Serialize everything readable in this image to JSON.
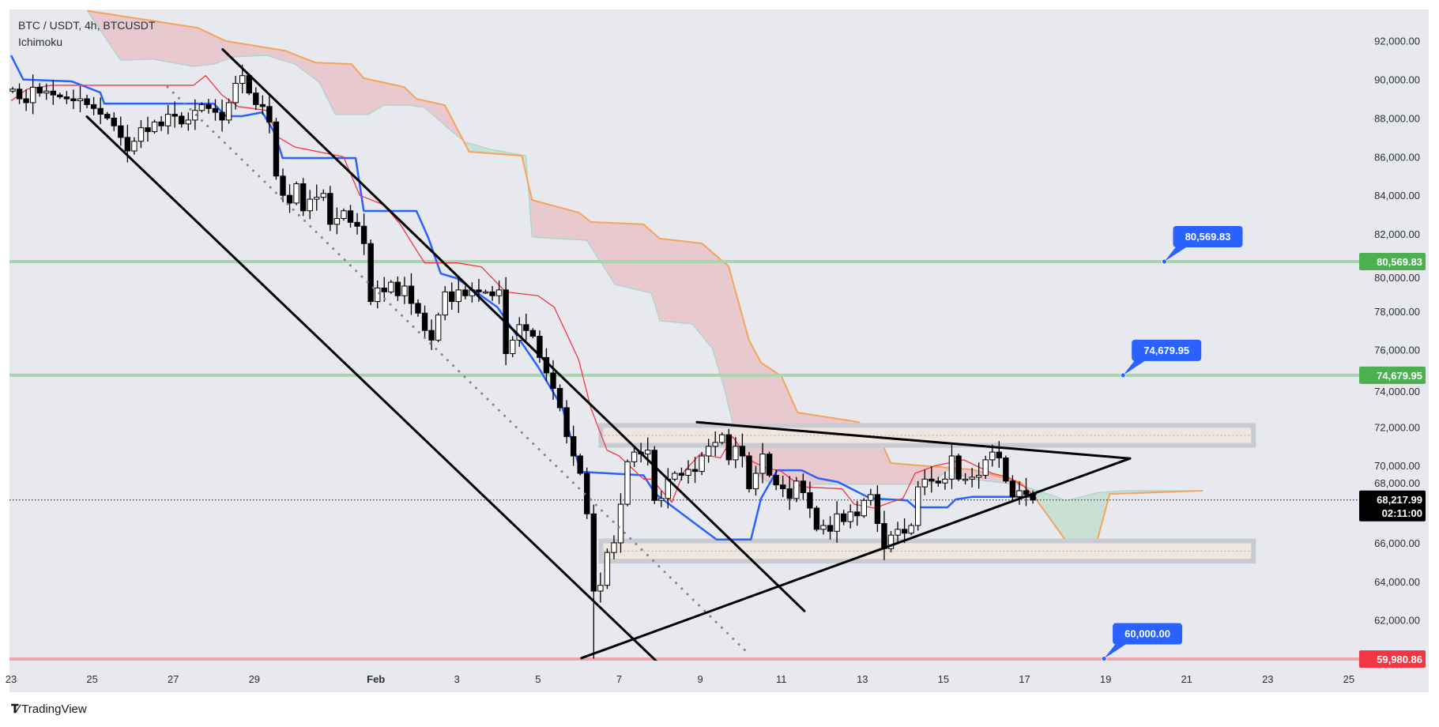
{
  "header": {
    "symbol": "BTC / USDT, 4h, BTCUSDT",
    "indicator": "Ichimoku"
  },
  "branding": {
    "name": "TradingView",
    "logo_glyph": "17"
  },
  "colors": {
    "background": "#e8e9ee",
    "tenkan": "#f23645",
    "kijun": "#2962ff",
    "span_b": "#f7a35c",
    "span_a": "#a5d6c8",
    "cloud_bear": "#e8c9cf",
    "cloud_bull": "#c9e0d4",
    "level_green": "#a8d5ac",
    "level_red": "#f0a4ad",
    "badge_green": "#4caf50",
    "badge_red": "#f23645",
    "callout": "#2962ff"
  },
  "chart_data": {
    "type": "candlestick",
    "title": "BTC / USDT, 4h, BTCUSDT",
    "interval_hours": 4,
    "x_unit": "days since Jan 23",
    "xlim": [
      0,
      33.25
    ],
    "ylim": [
      59899,
      93627
    ],
    "y_ticks": [
      92000,
      90000,
      88000,
      86000,
      84000,
      82000,
      80000,
      78000,
      76000,
      74000,
      72000,
      70000,
      68000,
      66000,
      64000,
      62000
    ],
    "y_tick_labels": [
      "92,000.00",
      "90,000.00",
      "88,000.00",
      "86,000.00",
      "84,000.00",
      "82,000.00",
      "80,000.00",
      "78,000.00",
      "76,000.00",
      "74,000.00",
      "72,000.00",
      "70,000.00",
      "68,000.00",
      "66,000.00",
      "64,000.00",
      "62,000.00"
    ],
    "x_ticks": [
      0,
      2,
      4,
      6,
      9,
      11,
      13,
      15,
      17,
      19,
      21,
      23,
      25,
      27,
      29,
      31,
      33
    ],
    "x_tick_labels": [
      "23",
      "25",
      "27",
      "29",
      "Feb",
      "3",
      "5",
      "7",
      "9",
      "11",
      "13",
      "15",
      "17",
      "19",
      "21",
      "23",
      "25"
    ],
    "closes": [
      89500,
      89000,
      88800,
      89600,
      89300,
      89400,
      89200,
      89100,
      89000,
      88900,
      89000,
      88700,
      88500,
      88200,
      88000,
      87600,
      87000,
      86300,
      86800,
      87500,
      87300,
      87800,
      87600,
      88200,
      88100,
      87700,
      87900,
      88400,
      88700,
      88500,
      88300,
      87900,
      88800,
      89800,
      90200,
      89300,
      88700,
      88600,
      87800,
      85000,
      84000,
      83600,
      84600,
      83200,
      83800,
      83900,
      84100,
      82500,
      82800,
      83200,
      82600,
      82400,
      81500,
      78500,
      79200,
      79000,
      79500,
      78800,
      79300,
      78400,
      77900,
      77000,
      76500,
      77800,
      79000,
      78500,
      79100,
      78800,
      79100,
      79000,
      79000,
      78800,
      79100,
      75800,
      76500,
      77300,
      77000,
      76700,
      75600,
      74800,
      74000,
      73000,
      71500,
      70500,
      69600,
      67500,
      63500,
      63800,
      65500,
      66000,
      68000,
      70200,
      70700,
      70600,
      70800,
      68200,
      68300,
      69300,
      69600,
      69500,
      69800,
      69700,
      70500,
      71000,
      71200,
      71600,
      70300,
      71000,
      70500,
      68800,
      69600,
      70600,
      69500,
      69000,
      68800,
      68300,
      69200,
      68600,
      67800,
      66700,
      66900,
      66600,
      67500,
      67100,
      67600,
      67400,
      68200,
      68500,
      67000,
      65700,
      66400,
      66700,
      66500,
      66900,
      68900,
      69300,
      69200,
      69100,
      69300,
      70500,
      69300,
      69300,
      69400,
      69500,
      70300,
      70700,
      70400,
      69200,
      68400,
      68700,
      68500,
      68217.99
    ],
    "first_open": 89400,
    "low_of_range": 60000,
    "tenkan": [
      [
        0,
        88900
      ],
      [
        0.4,
        89500
      ],
      [
        1,
        89700
      ],
      [
        4.5,
        89700
      ],
      [
        4.8,
        90200
      ],
      [
        5.2,
        89200
      ],
      [
        5.6,
        88600
      ],
      [
        6.3,
        88400
      ],
      [
        6.6,
        87000
      ],
      [
        7,
        86500
      ],
      [
        8.2,
        86000
      ],
      [
        8.6,
        84000
      ],
      [
        9.2,
        83500
      ],
      [
        9.6,
        82500
      ],
      [
        10.2,
        80500
      ],
      [
        11,
        80500
      ],
      [
        11.6,
        80300
      ],
      [
        12.2,
        79000
      ],
      [
        13,
        78800
      ],
      [
        13.4,
        78200
      ],
      [
        14,
        75500
      ],
      [
        14.3,
        73000
      ],
      [
        14.7,
        70800
      ],
      [
        15,
        70500
      ],
      [
        15.6,
        69300
      ],
      [
        15.8,
        69300
      ],
      [
        16.3,
        68100
      ],
      [
        16.6,
        69700
      ],
      [
        17,
        70600
      ],
      [
        17.5,
        70400
      ],
      [
        17.8,
        71500
      ],
      [
        18.2,
        70300
      ],
      [
        18.6,
        69900
      ],
      [
        19,
        69700
      ],
      [
        19.5,
        68900
      ],
      [
        20.5,
        68800
      ],
      [
        20.8,
        68000
      ],
      [
        21.3,
        67800
      ],
      [
        21.7,
        68100
      ],
      [
        22,
        68300
      ],
      [
        22.3,
        69600
      ],
      [
        22.8,
        70000
      ],
      [
        23.5,
        70300
      ],
      [
        24.2,
        69600
      ],
      [
        24.6,
        69400
      ],
      [
        25,
        68900
      ],
      [
        25.3,
        68300
      ]
    ],
    "kijun": [
      [
        0,
        91250
      ],
      [
        0.3,
        90000
      ],
      [
        1.5,
        89900
      ],
      [
        2.2,
        89330
      ],
      [
        2.3,
        88750
      ],
      [
        5,
        88750
      ],
      [
        5.3,
        88100
      ],
      [
        5.7,
        88100
      ],
      [
        6.2,
        88300
      ],
      [
        6.5,
        87240
      ],
      [
        6.7,
        85930
      ],
      [
        8.5,
        85930
      ],
      [
        8.7,
        83190
      ],
      [
        10,
        83190
      ],
      [
        10.3,
        81760
      ],
      [
        10.6,
        79950
      ],
      [
        11,
        79700
      ],
      [
        12,
        78200
      ],
      [
        13,
        75120
      ],
      [
        13.6,
        73000
      ],
      [
        14.05,
        69680
      ],
      [
        15.6,
        69500
      ],
      [
        15.9,
        68530
      ],
      [
        17.4,
        66170
      ],
      [
        18.25,
        66170
      ],
      [
        18.5,
        68300
      ],
      [
        18.9,
        69760
      ],
      [
        19.5,
        69760
      ],
      [
        19.9,
        69350
      ],
      [
        20.4,
        69150
      ],
      [
        21.2,
        68300
      ],
      [
        22.1,
        68200
      ],
      [
        22.3,
        67840
      ],
      [
        23.1,
        67840
      ],
      [
        23.3,
        68250
      ],
      [
        23.7,
        68380
      ],
      [
        25.1,
        68380
      ],
      [
        25.3,
        68530
      ]
    ],
    "span_b": [
      [
        1.88,
        93560
      ],
      [
        4.6,
        92680
      ],
      [
        5.3,
        91990
      ],
      [
        6.75,
        91500
      ],
      [
        7.5,
        90880
      ],
      [
        8.4,
        90800
      ],
      [
        8.7,
        90070
      ],
      [
        9.7,
        89610
      ],
      [
        10,
        89000
      ],
      [
        10.7,
        88670
      ],
      [
        11.3,
        86260
      ],
      [
        12.6,
        86050
      ],
      [
        12.85,
        83760
      ],
      [
        14,
        83110
      ],
      [
        14.3,
        82620
      ],
      [
        15.6,
        82500
      ],
      [
        16,
        81760
      ],
      [
        17.04,
        81510
      ],
      [
        17.7,
        80330
      ],
      [
        18.2,
        76520
      ],
      [
        18.5,
        75330
      ],
      [
        19,
        74640
      ],
      [
        19.4,
        72750
      ],
      [
        20.9,
        72260
      ],
      [
        21.5,
        71080
      ],
      [
        21.7,
        70130
      ],
      [
        22.4,
        70010
      ],
      [
        23.7,
        69800
      ],
      [
        24.9,
        69150
      ],
      [
        25.3,
        68210
      ],
      [
        26,
        66170
      ],
      [
        26.8,
        66170
      ],
      [
        27.1,
        68530
      ],
      [
        29.4,
        68700
      ]
    ],
    "span_a": [
      [
        1.88,
        93560
      ],
      [
        2.7,
        91000
      ],
      [
        3.5,
        91050
      ],
      [
        4.5,
        90680
      ],
      [
        5,
        90800
      ],
      [
        5.5,
        91170
      ],
      [
        6.3,
        91250
      ],
      [
        7,
        90800
      ],
      [
        7.6,
        89860
      ],
      [
        8,
        88180
      ],
      [
        8.8,
        88180
      ],
      [
        9.2,
        88670
      ],
      [
        9.8,
        88670
      ],
      [
        10.2,
        88550
      ],
      [
        10.8,
        87440
      ],
      [
        11.2,
        86750
      ],
      [
        11.8,
        86400
      ],
      [
        12.7,
        86050
      ],
      [
        12.85,
        81840
      ],
      [
        14.2,
        81670
      ],
      [
        14.9,
        79380
      ],
      [
        15.8,
        78930
      ],
      [
        16,
        77500
      ],
      [
        16.8,
        77340
      ],
      [
        17.3,
        76070
      ],
      [
        17.6,
        73940
      ],
      [
        17.9,
        71320
      ],
      [
        18.2,
        69890
      ],
      [
        18.7,
        69100
      ],
      [
        19.6,
        68700
      ],
      [
        19.8,
        69030
      ],
      [
        22.7,
        69030
      ],
      [
        23.1,
        69770
      ],
      [
        23.7,
        69300
      ],
      [
        24.9,
        68990
      ],
      [
        25.8,
        68380
      ],
      [
        26,
        68170
      ],
      [
        26.8,
        68600
      ],
      [
        27.5,
        68700
      ],
      [
        29.4,
        68700
      ]
    ],
    "horizontal_levels": [
      {
        "price": 80569.83,
        "label": "80,569.83",
        "kind": "resistance"
      },
      {
        "price": 74679.95,
        "label": "74,679.95",
        "kind": "resistance"
      },
      {
        "price": 59980.86,
        "label": "59,980.86",
        "kind": "support"
      }
    ],
    "callouts": [
      {
        "price": 80569.83,
        "day": 28.45,
        "label": "80,569.83"
      },
      {
        "price": 74679.95,
        "day": 27.43,
        "label": "74,679.95"
      },
      {
        "price": 60000.0,
        "day": 26.96,
        "label": "60,000.00"
      }
    ],
    "zones": [
      {
        "day_from": 14.55,
        "day_to": 30.65,
        "price_from": 71050,
        "price_to": 72080
      },
      {
        "day_from": 14.55,
        "day_to": 30.65,
        "price_from": 65050,
        "price_to": 66100
      }
    ],
    "trendlines": [
      {
        "name": "channel-lower",
        "style": "solid",
        "p1": [
          1.87,
          88080
        ],
        "p2": [
          15.91,
          59890
        ]
      },
      {
        "name": "channel-upper",
        "style": "solid",
        "p1": [
          5.22,
          91560
        ],
        "p2": [
          19.57,
          62470
        ]
      },
      {
        "name": "channel-mid",
        "style": "dotted",
        "p1": [
          3.86,
          89610
        ],
        "p2": [
          18.23,
          60180
        ]
      },
      {
        "name": "triangle-upper",
        "style": "solid",
        "p1": [
          16.92,
          72250
        ],
        "p2": [
          27.6,
          70370
        ]
      },
      {
        "name": "triangle-lower",
        "style": "solid",
        "p1": [
          14.07,
          60030
        ],
        "p2": [
          27.6,
          70370
        ]
      }
    ],
    "current_price": {
      "price": 68217.99,
      "label": "68,217.99",
      "countdown": "02:11:00"
    }
  }
}
